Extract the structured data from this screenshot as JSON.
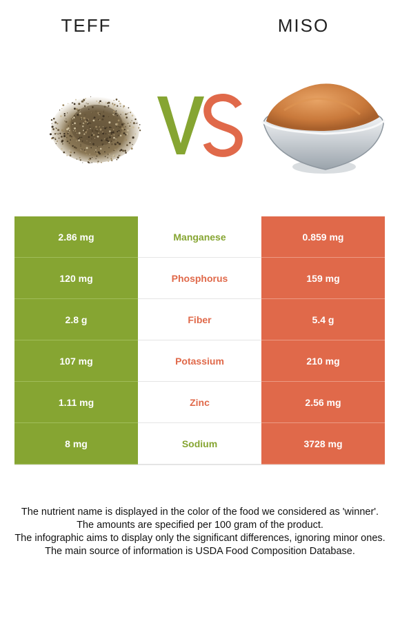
{
  "header": {
    "left_food": "TEFF",
    "right_food": "MISO",
    "vs_label": "VS"
  },
  "colors": {
    "left": "#86a532",
    "right": "#e0694a"
  },
  "rows": [
    {
      "nutrient": "Manganese",
      "left": "2.86 mg",
      "right": "0.859 mg",
      "winner": "left",
      "winner_color": "#86a532"
    },
    {
      "nutrient": "Phosphorus",
      "left": "120 mg",
      "right": "159 mg",
      "winner": "right",
      "winner_color": "#e0694a"
    },
    {
      "nutrient": "Fiber",
      "left": "2.8 g",
      "right": "5.4 g",
      "winner": "right",
      "winner_color": "#e0694a"
    },
    {
      "nutrient": "Potassium",
      "left": "107 mg",
      "right": "210 mg",
      "winner": "right",
      "winner_color": "#e0694a"
    },
    {
      "nutrient": "Zinc",
      "left": "1.11 mg",
      "right": "2.56 mg",
      "winner": "right",
      "winner_color": "#e0694a"
    },
    {
      "nutrient": "Sodium",
      "left": "8 mg",
      "right": "3728 mg",
      "winner": "left",
      "winner_color": "#86a532"
    }
  ],
  "footnotes": [
    "The nutrient name is displayed in the color of the food we considered as 'winner'.",
    "The amounts are specified per 100 gram of the product.",
    "The infographic aims to display only the significant differences, ignoring minor ones.",
    "The main source of information is USDA Food Composition Database."
  ]
}
